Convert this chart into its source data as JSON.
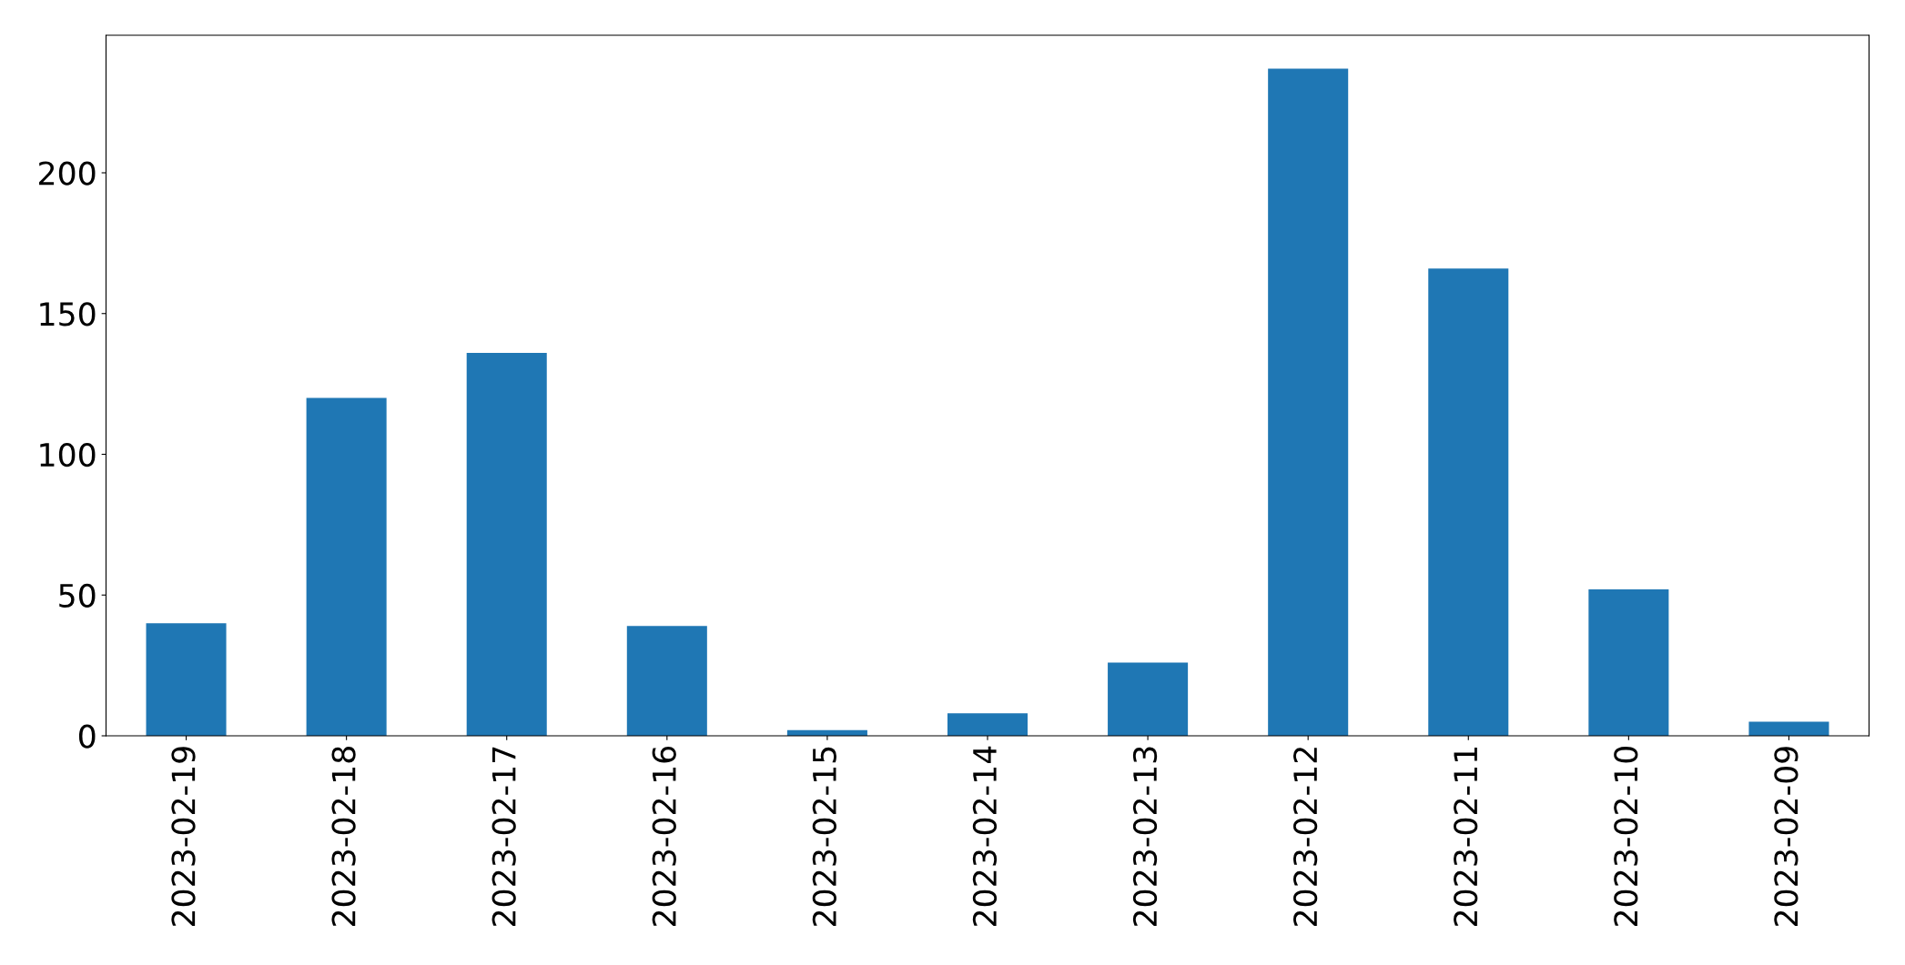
{
  "chart_data": {
    "type": "bar",
    "categories": [
      "2023-02-19",
      "2023-02-18",
      "2023-02-17",
      "2023-02-16",
      "2023-02-15",
      "2023-02-14",
      "2023-02-13",
      "2023-02-12",
      "2023-02-11",
      "2023-02-10",
      "2023-02-09"
    ],
    "values": [
      40,
      120,
      136,
      39,
      2,
      8,
      26,
      237,
      166,
      52,
      5
    ],
    "color": "#1f77b4",
    "ylim": [
      0,
      248.85
    ],
    "yticks": [
      0,
      50,
      100,
      150,
      200
    ],
    "grid": false
  }
}
